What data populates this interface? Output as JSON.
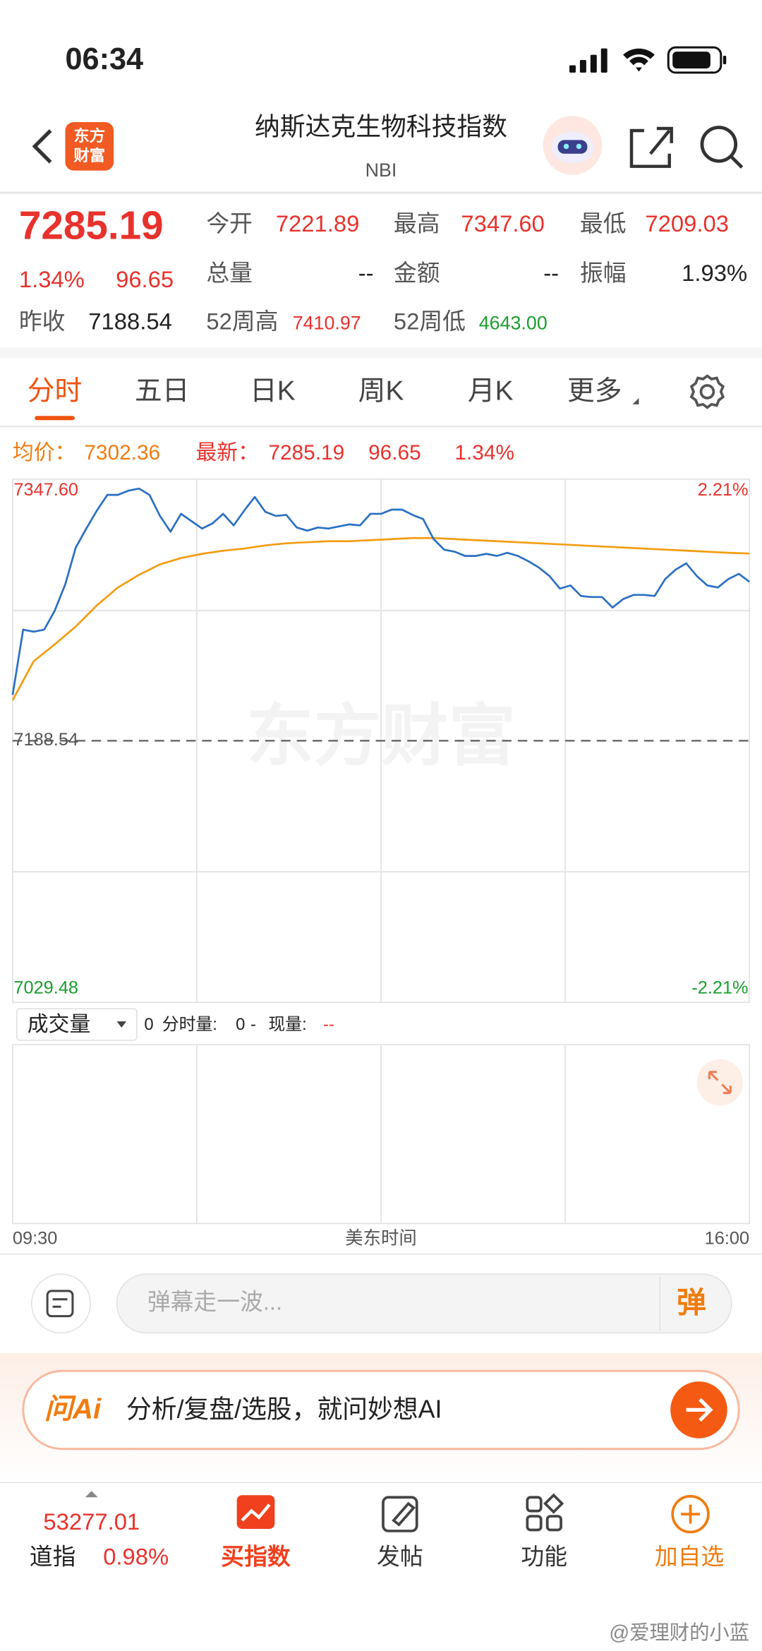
{
  "status_bar": {
    "time": "06:34"
  },
  "header": {
    "logo": [
      "东方",
      "财富"
    ],
    "title": "纳斯达克生物科技指数",
    "subtitle": "NBI"
  },
  "quote": {
    "price": "7285.19",
    "change_pct": "1.34%",
    "change": "96.65",
    "stats": [
      {
        "label": "今开",
        "value": "7221.89"
      },
      {
        "label": "最高",
        "value": "7347.60"
      },
      {
        "label": "最低",
        "value": "7209.03"
      },
      {
        "label": "总量",
        "value": "--"
      },
      {
        "label": "金额",
        "value": "--"
      },
      {
        "label": "振幅",
        "value": "1.93%"
      },
      {
        "label": "昨收",
        "value": "7188.54"
      },
      {
        "label": "52周高",
        "value": "7410.97"
      },
      {
        "label": "52周低",
        "value": "4643.00"
      }
    ]
  },
  "tabs": [
    "分时",
    "五日",
    "日K",
    "周K",
    "月K",
    "更多"
  ],
  "chart_data": {
    "type": "line",
    "legend": {
      "avg_label": "均价：",
      "avg": "7302.36",
      "latest_label": "最新：",
      "latest": "7285.19",
      "change": "96.65",
      "change_pct": "1.34%"
    },
    "watermark": "东方财富",
    "ylim": [
      7029.48,
      7347.6
    ],
    "yticks": [
      {
        "value": 7347.6,
        "label": "7347.60"
      },
      {
        "value": 7188.54,
        "label": "7188.54"
      },
      {
        "value": 7029.48,
        "label": "7029.48"
      }
    ],
    "y2lim": [
      -2.21,
      2.21
    ],
    "y2ticks": [
      {
        "value": 2.21,
        "label": "2.21%"
      },
      {
        "value": -2.21,
        "label": "-2.21%"
      }
    ],
    "x_start": "09:30",
    "x_end": "16:00",
    "xlabel": "美东时间",
    "series": [
      {
        "color": "#2a6fc4",
        "values": [
          7216.4,
          7256.08,
          7254.8,
          7256.08,
          7267.6,
          7283.6,
          7306.0,
          7317.52,
          7328.4,
          7338.0,
          7338.0,
          7340.56,
          7341.84,
          7338.0,
          7325.2,
          7315.6,
          7326.48,
          7322.0,
          7317.52,
          7320.72,
          7326.48,
          7319.44,
          7328.4,
          7336.72,
          7327.76,
          7325.2,
          7325.84,
          7318.16,
          7316.24,
          7318.16,
          7317.52,
          7318.8,
          7320.08,
          7319.44,
          7326.48,
          7326.48,
          7329.04,
          7329.04,
          7325.84,
          7323.28,
          7311.12,
          7304.72,
          7303.44,
          7300.88,
          7300.88,
          7302.16,
          7300.88,
          7302.8,
          7300.88,
          7297.68,
          7293.84,
          7288.72,
          7281.04,
          7282.96,
          7276.56,
          7275.92,
          7275.92,
          7269.52,
          7274.64,
          7277.2,
          7277.2,
          7276.56,
          7286.8,
          7292.56,
          7296.4,
          7288.72,
          7282.96,
          7281.68,
          7286.8,
          7290.0,
          7285.19
        ]
      },
      {
        "color": "#f39c12",
        "values": [
          7213.2,
          7236.88,
          7247.12,
          7258.0,
          7270.8,
          7281.68,
          7289.36,
          7295.76,
          7299.6,
          7302.16,
          7304.08,
          7305.36,
          7307.28,
          7308.56,
          7309.2,
          7309.84,
          7309.84,
          7310.48,
          7311.12,
          7311.76,
          7311.76,
          7311.12,
          7310.48,
          7309.84,
          7309.2,
          7308.56,
          7307.92,
          7307.28,
          7306.64,
          7306.0,
          7305.36,
          7304.72,
          7304.08,
          7303.44,
          7302.8,
          7302.36
        ]
      }
    ]
  },
  "volume": {
    "selector": "成交量",
    "v1": "0",
    "label2": "分时量:",
    "v2": "0",
    "sep": "-",
    "label3": "现量:",
    "v3": "--"
  },
  "comment": {
    "placeholder": "弹幕走一波...",
    "button": "弹"
  },
  "ai_bar": {
    "brand": "问Ai",
    "text": "分析/复盘/选股，就问妙想AI"
  },
  "bottom_nav": {
    "index_value": "53277.01",
    "index_name": "道指",
    "index_change": "0.98%",
    "items": [
      "买指数",
      "发帖",
      "功能",
      "加自选"
    ]
  },
  "footer": {
    "watermark": "@爱理财的小蓝"
  }
}
